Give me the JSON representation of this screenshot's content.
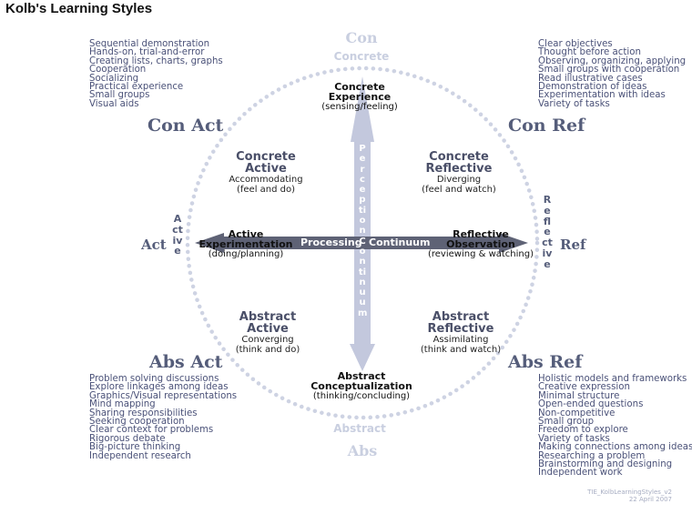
{
  "title": "Kolb's Learning Styles",
  "poles": {
    "top_short": "Con",
    "top_word": "Concrete",
    "bottom_short": "Abs",
    "bottom_word": "Abstract",
    "left": "Act",
    "right": "Ref"
  },
  "vertical_words": {
    "left": "Active",
    "right": "Reflective"
  },
  "corners": {
    "top_left": "Con Act",
    "top_right": "Con Ref",
    "bottom_left": "Abs Act",
    "bottom_right": "Abs Ref"
  },
  "lists": {
    "top_left": [
      "Sequential demonstration",
      "Hands-on, trial-and-error",
      "Creating lists, charts, graphs",
      "Cooperation",
      "Socializing",
      "Practical experience",
      "Small groups",
      "Visual aids"
    ],
    "top_right": [
      "Clear objectives",
      "Thought before action",
      "Observing, organizing, applying",
      "Small groups with cooperation",
      "Read illustrative cases",
      "Demonstration of ideas",
      "Experimentation with ideas",
      "Variety of tasks"
    ],
    "bottom_left": [
      "Problem solving discussions",
      "Explore linkages among ideas",
      "Graphics/Visual representations",
      "Mind mapping",
      "Sharing responsibilities",
      "Seeking cooperation",
      "Clear context for problems",
      "Rigorous debate",
      "Big-picture thinking",
      "Independent research"
    ],
    "bottom_right": [
      "Holistic models and frameworks",
      "Creative expression",
      "Minimal structure",
      "Open-ended questions",
      "Non-competitive",
      "Small group",
      "Freedom to explore",
      "Variety of tasks",
      "Making connections among ideas",
      "Researching a problem",
      "Brainstorming and designing",
      "Independent work"
    ]
  },
  "quadrants": {
    "top_left": {
      "line1": "Concrete",
      "line2": "Active",
      "line3": "Accommodating",
      "line4": "(feel and do)"
    },
    "top_right": {
      "line1": "Concrete",
      "line2": "Reflective",
      "line3": "Diverging",
      "line4": "(feel and watch)"
    },
    "bottom_left": {
      "line1": "Abstract",
      "line2": "Active",
      "line3": "Converging",
      "line4": "(think and do)"
    },
    "bottom_right": {
      "line1": "Abstract",
      "line2": "Reflective",
      "line3": "Assimilating",
      "line4": "(think and watch)"
    }
  },
  "nodes": {
    "top": {
      "line1": "Concrete",
      "line2": "Experience",
      "line3": "(sensing/feeling)"
    },
    "bottom": {
      "line1": "Abstract",
      "line2": "Conceptualization",
      "line3": "(thinking/concluding)"
    },
    "left": {
      "line1": "Active",
      "line2": "Experimentation",
      "line3": "(doing/planning)"
    },
    "right": {
      "line1": "Reflective",
      "line2": "Observation",
      "line3": "(reviewing & watching)"
    }
  },
  "axes": {
    "horizontal_left": "Processing",
    "horizontal_right": "Continuum",
    "vertical": "Perception Continuum"
  },
  "footer": {
    "line1": "TIE_KolbLearningStyles_v2",
    "line2": "22 April 2007"
  },
  "colors": {
    "circle_dots": "#ced3e3",
    "vertical_arrow": "#c3c8dd",
    "horizontal_arrow": "#5e6275",
    "label_text": "#555d7a",
    "list_text": "#4a5178"
  }
}
